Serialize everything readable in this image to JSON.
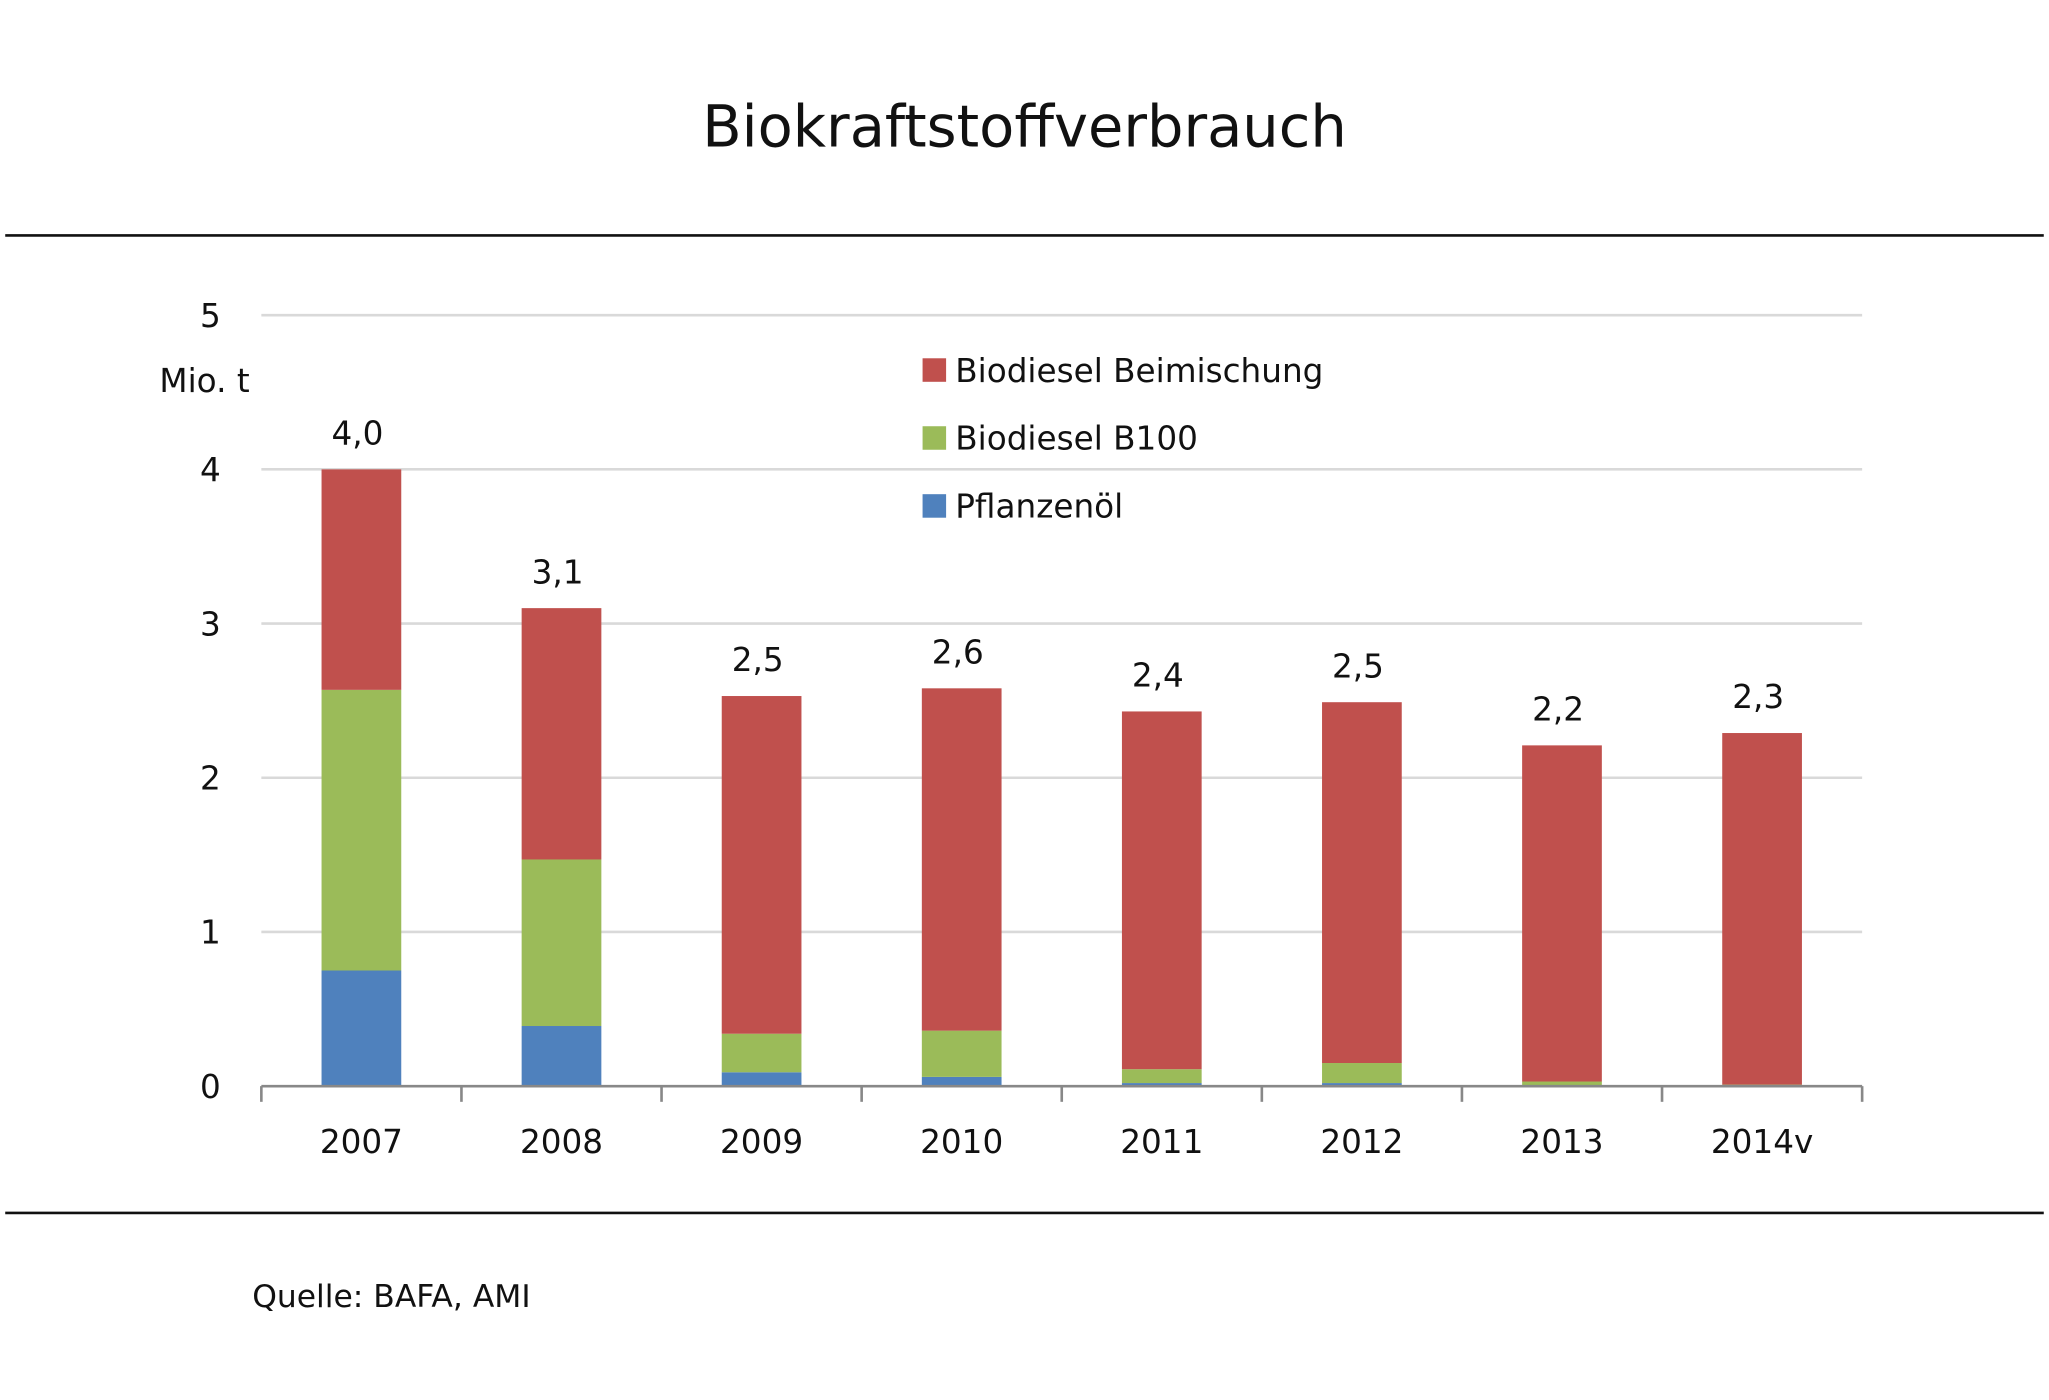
{
  "chart_data": {
    "type": "bar",
    "stacked": true,
    "title": "Biokraftstoffverbrauch",
    "ylabel": "Mio. t",
    "xlabel": "",
    "ylim": [
      0,
      5
    ],
    "yticks": [
      "0",
      "1",
      "2",
      "3",
      "4",
      "5"
    ],
    "grid": true,
    "legend_position": "top-center",
    "categories": [
      "2007",
      "2008",
      "2009",
      "2010",
      "2011",
      "2012",
      "2013",
      "2014v"
    ],
    "series": [
      {
        "name": "Pflanzenöl",
        "color": "#4f81bd",
        "values": [
          0.75,
          0.39,
          0.09,
          0.06,
          0.02,
          0.02,
          0.0,
          0.0
        ]
      },
      {
        "name": "Biodiesel B100",
        "color": "#9bbb59",
        "values": [
          1.82,
          1.08,
          0.25,
          0.3,
          0.09,
          0.13,
          0.03,
          0.01
        ]
      },
      {
        "name": "Biodiesel Beimischung",
        "color": "#c0504d",
        "values": [
          1.43,
          1.63,
          2.19,
          2.22,
          2.32,
          2.34,
          2.18,
          2.28
        ]
      }
    ],
    "totals_labels": [
      "4,0",
      "3,1",
      "2,5",
      "2,6",
      "2,4",
      "2,5",
      "2,2",
      "2,3"
    ],
    "legend_order": [
      "Biodiesel Beimischung",
      "Biodiesel B100",
      "Pflanzenöl"
    ],
    "source": "Quelle: BAFA, AMI"
  }
}
